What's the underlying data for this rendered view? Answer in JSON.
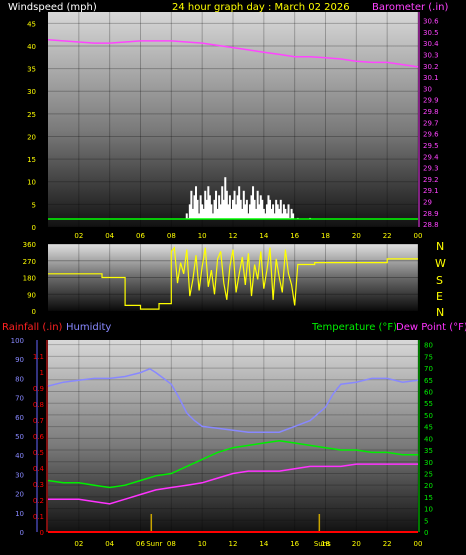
{
  "header": {
    "windspeed_label": "Windspeed (mph)",
    "title": "24 hour graph day : March 02 2026",
    "barometer_label": "Barometer (.in)"
  },
  "mid_header": {
    "compass_labels": [
      "N",
      "W",
      "S",
      "E",
      "N"
    ]
  },
  "bottom_header": {
    "rainfall_label": "Rainfall (.in)",
    "humidity_label": "Humidity",
    "temperature_label": "Temperature (°F)",
    "dewpoint_label": "Dew Point (°F)"
  },
  "colors": {
    "wind": "#ffffff",
    "gust": "#ffffff",
    "avg_wind": "#00ff00",
    "barometer": "#ff44ff",
    "direction": "#ffff00",
    "rain": "#ff0000",
    "humidity": "#8888ff",
    "temperature": "#00ee00",
    "dewpoint": "#ff33ff",
    "sun": "#c8a400",
    "axis_label": "#ffff00"
  },
  "chart_data": [
    {
      "type": "line",
      "name": "wind-barometer",
      "x_ticks": [
        "02",
        "04",
        "06",
        "08",
        "10",
        "12",
        "14",
        "16",
        "18",
        "20",
        "22",
        "00"
      ],
      "x_range": [
        0,
        24
      ],
      "left_axis": {
        "label": "Windspeed (mph)",
        "ticks": [
          "0",
          "5",
          "10",
          "15",
          "20",
          "25",
          "30",
          "35",
          "40",
          "45"
        ],
        "ylim": [
          0,
          47.5
        ]
      },
      "right_axis": {
        "label": "Barometer (.in)",
        "ticks": [
          "28.8",
          "28.9",
          "29",
          "29.1",
          "29.2",
          "29.3",
          "29.4",
          "29.5",
          "29.6",
          "29.7",
          "29.8",
          "29.9",
          "30",
          "30.1",
          "30.2",
          "30.3",
          "30.4",
          "30.5",
          "30.6"
        ],
        "ylim": [
          28.775,
          30.675
        ]
      },
      "series": [
        {
          "name": "Barometer",
          "axis": "right",
          "x": [
            0,
            1,
            2,
            3,
            4,
            5,
            6,
            7,
            8,
            9,
            10,
            11,
            12,
            13,
            14,
            15,
            16,
            17,
            18,
            19,
            20,
            21,
            22,
            23,
            24
          ],
          "values": [
            30.43,
            30.42,
            30.41,
            30.4,
            30.4,
            30.41,
            30.42,
            30.42,
            30.42,
            30.41,
            30.4,
            30.38,
            30.36,
            30.34,
            30.32,
            30.3,
            30.28,
            30.28,
            30.27,
            30.26,
            30.24,
            30.23,
            30.23,
            30.21,
            30.19
          ]
        },
        {
          "name": "Windspeed",
          "axis": "left",
          "x": [
            4.5,
            6.8,
            8.5,
            9.0,
            9.1,
            9.2,
            9.3,
            9.4,
            9.5,
            9.6,
            9.7,
            9.8,
            9.9,
            10.0,
            10.1,
            10.2,
            10.3,
            10.4,
            10.5,
            10.6,
            10.7,
            10.8,
            10.9,
            11.0,
            11.1,
            11.2,
            11.3,
            11.4,
            11.5,
            11.6,
            11.7,
            11.8,
            11.9,
            12.0,
            12.1,
            12.2,
            12.3,
            12.4,
            12.5,
            12.6,
            12.7,
            12.8,
            12.9,
            13.0,
            13.1,
            13.2,
            13.3,
            13.4,
            13.5,
            13.6,
            13.7,
            13.8,
            13.9,
            14.0,
            14.1,
            14.2,
            14.3,
            14.4,
            14.5,
            14.6,
            14.7,
            14.8,
            14.9,
            15.0,
            15.1,
            15.2,
            15.3,
            15.4,
            15.5,
            15.6,
            15.7,
            15.8,
            15.9,
            16.2,
            16.6,
            17.0,
            17.3
          ],
          "values": [
            1,
            1,
            1,
            3,
            2,
            5,
            8,
            4,
            7,
            9,
            6,
            3,
            7,
            5,
            4,
            8,
            6,
            9,
            7,
            5,
            3,
            6,
            8,
            4,
            7,
            5,
            9,
            6,
            11,
            8,
            5,
            7,
            4,
            6,
            8,
            5,
            7,
            9,
            6,
            4,
            8,
            5,
            6,
            3,
            5,
            7,
            9,
            6,
            4,
            8,
            5,
            7,
            6,
            4,
            3,
            5,
            7,
            6,
            4,
            5,
            3,
            6,
            5,
            4,
            6,
            3,
            5,
            4,
            3,
            5,
            2,
            4,
            3,
            2,
            1,
            2,
            1
          ]
        }
      ]
    },
    {
      "type": "line",
      "name": "wind-direction",
      "x_range": [
        0,
        24
      ],
      "left_axis": {
        "ticks": [
          "0",
          "90",
          "180",
          "270",
          "360"
        ],
        "ylim": [
          0,
          360
        ]
      },
      "series": [
        {
          "name": "Wind Direction",
          "x": [
            0,
            3.5,
            3.5,
            5.0,
            5.0,
            6.0,
            6.0,
            7.2,
            7.2,
            8.0,
            8.0,
            8.2,
            8.4,
            8.6,
            8.8,
            9.0,
            9.2,
            9.4,
            9.6,
            9.8,
            10.0,
            10.2,
            10.4,
            10.6,
            10.8,
            11.0,
            11.2,
            11.4,
            11.6,
            11.8,
            12.0,
            12.2,
            12.4,
            12.6,
            12.8,
            13.0,
            13.2,
            13.4,
            13.6,
            13.8,
            14.0,
            14.2,
            14.4,
            14.6,
            14.8,
            15.0,
            15.2,
            15.4,
            15.6,
            15.8,
            16.0,
            16.2,
            16.4,
            17.3,
            17.3,
            22.0,
            22.0,
            24
          ],
          "values": [
            200,
            200,
            180,
            180,
            30,
            30,
            10,
            10,
            40,
            40,
            320,
            340,
            150,
            260,
            200,
            330,
            80,
            170,
            300,
            110,
            240,
            340,
            130,
            220,
            90,
            280,
            320,
            150,
            60,
            240,
            330,
            100,
            200,
            290,
            140,
            310,
            80,
            250,
            170,
            320,
            120,
            220,
            340,
            60,
            280,
            180,
            100,
            330,
            200,
            140,
            30,
            250,
            250,
            250,
            260,
            260,
            280,
            280
          ]
        }
      ]
    },
    {
      "type": "line",
      "name": "temperature-humidity",
      "x_ticks": [
        "02",
        "04",
        "06",
        "08",
        "10",
        "12",
        "14",
        "16",
        "18",
        "20",
        "22",
        "00"
      ],
      "x_range": [
        0,
        24
      ],
      "left_axis": {
        "label": "Humidity",
        "ticks": [
          "0",
          "10",
          "20",
          "30",
          "40",
          "50",
          "60",
          "70",
          "80",
          "90",
          "100"
        ],
        "ylim": [
          0,
          100
        ]
      },
      "rain_axis": {
        "label": "Rainfall (.in)",
        "ticks": [
          "0",
          "0.1",
          "0.2",
          "0.3",
          "0.4",
          "0.5",
          "0.6",
          "0.7",
          "0.8",
          "0.9",
          "1",
          "1.1"
        ],
        "ylim": [
          0,
          1.2
        ]
      },
      "right_axis": {
        "label": "Temperature (°F)",
        "ticks": [
          "0",
          "5",
          "10",
          "15",
          "20",
          "25",
          "30",
          "35",
          "40",
          "45",
          "50",
          "55",
          "60",
          "65",
          "70",
          "75",
          "80"
        ],
        "ylim": [
          0,
          82
        ]
      },
      "sun_markers": {
        "labels": [
          "Sunrise",
          "Sunset"
        ],
        "x": [
          6.7,
          17.6
        ]
      },
      "series": [
        {
          "name": "Humidity",
          "axis": "left",
          "x": [
            0,
            1,
            2,
            3,
            4,
            5,
            6,
            6.6,
            7,
            7.5,
            8,
            8.5,
            9,
            9.5,
            10,
            11,
            12,
            13,
            14,
            15,
            16,
            17,
            18,
            18.5,
            19,
            20,
            21,
            22,
            23,
            24
          ],
          "values": [
            76,
            78,
            79,
            80,
            80,
            81,
            83,
            85,
            83,
            80,
            77,
            70,
            62,
            58,
            55,
            54,
            53,
            52,
            52,
            52,
            55,
            58,
            65,
            72,
            77,
            78,
            80,
            80,
            78,
            79
          ]
        },
        {
          "name": "Temperature",
          "axis": "right",
          "x": [
            0,
            1,
            2,
            3,
            4,
            5,
            6,
            7,
            8,
            9,
            10,
            11,
            12,
            13,
            14,
            15,
            16,
            17,
            18,
            19,
            20,
            21,
            22,
            23,
            24
          ],
          "values": [
            22,
            21,
            21,
            20,
            19,
            20,
            22,
            24,
            25,
            28,
            31,
            34,
            36,
            37,
            38,
            39,
            38,
            37,
            36,
            35,
            35,
            34,
            34,
            33,
            33
          ]
        },
        {
          "name": "Dew Point",
          "axis": "right",
          "x": [
            0,
            1,
            2,
            3,
            4,
            5,
            6,
            7,
            8,
            9,
            10,
            11,
            12,
            13,
            14,
            15,
            16,
            17,
            18,
            19,
            20,
            21,
            22,
            23,
            24
          ],
          "values": [
            14,
            14,
            14,
            13,
            12,
            14,
            16,
            18,
            19,
            20,
            21,
            23,
            25,
            26,
            26,
            26,
            27,
            28,
            28,
            28,
            29,
            29,
            29,
            29,
            29
          ]
        },
        {
          "name": "Rainfall",
          "axis": "rain",
          "x": [
            0,
            24
          ],
          "values": [
            0,
            0
          ]
        }
      ]
    }
  ]
}
